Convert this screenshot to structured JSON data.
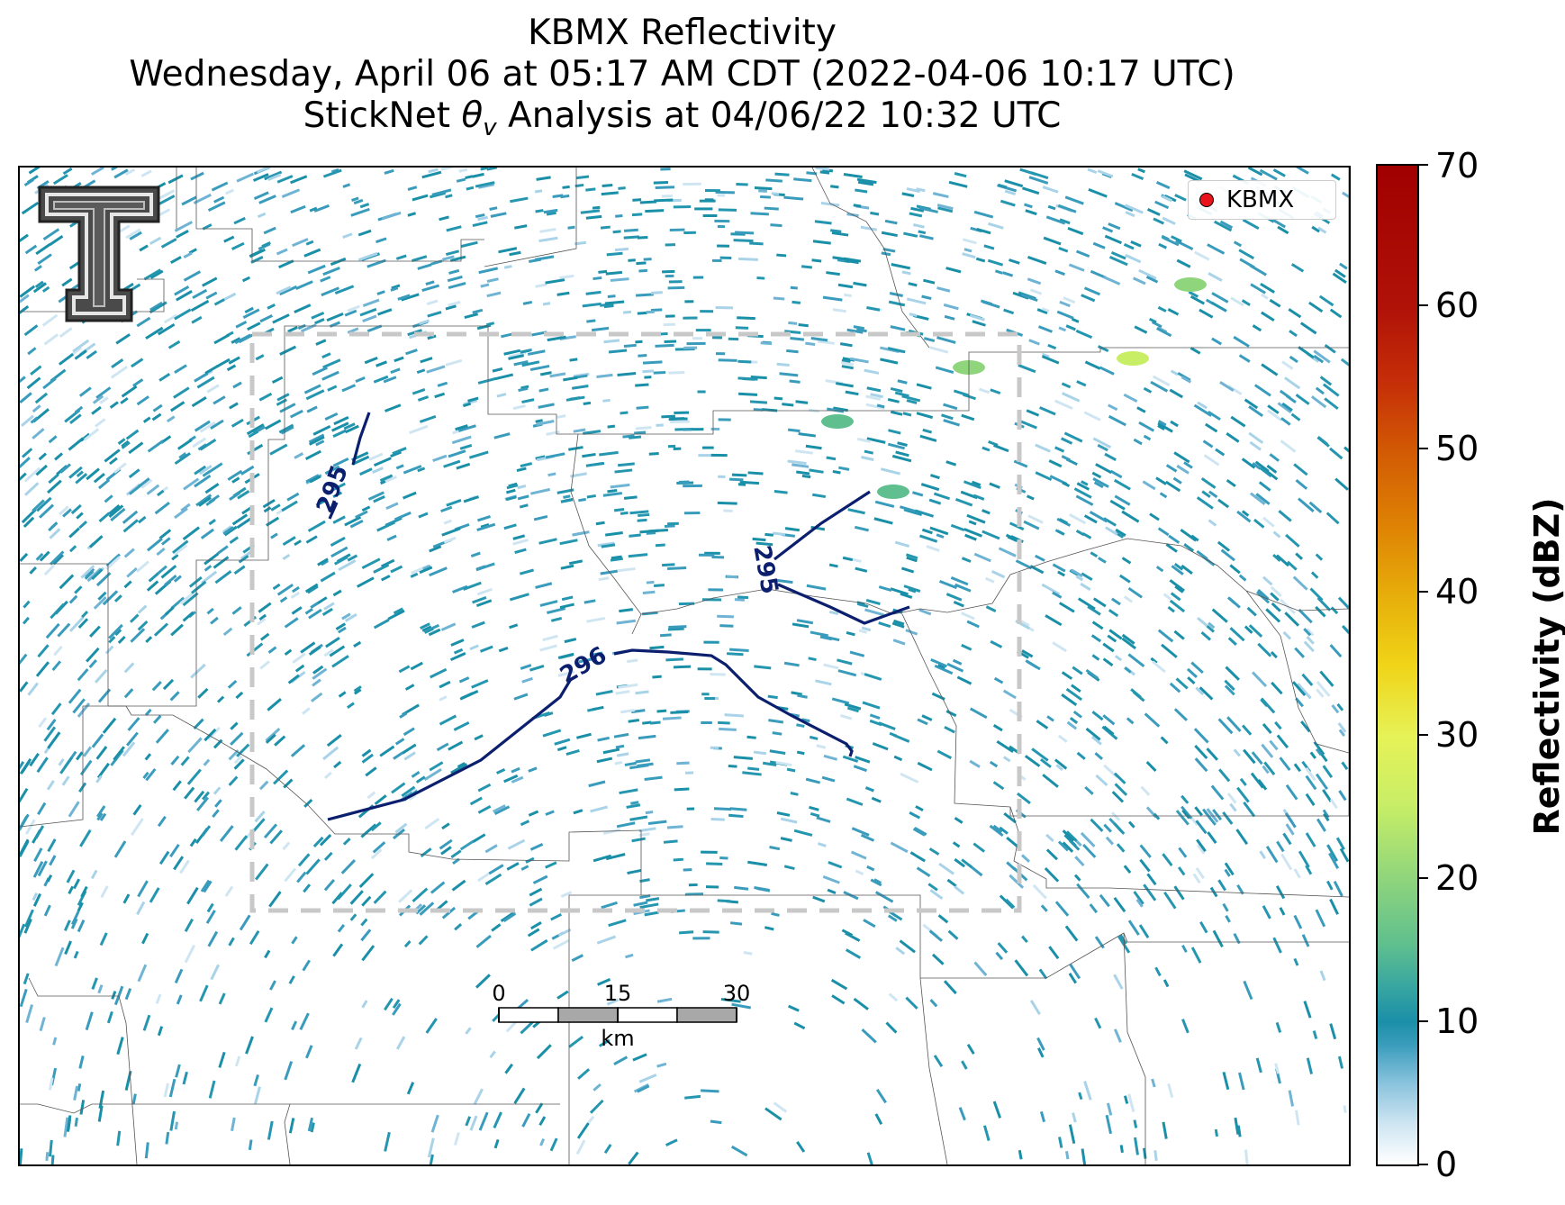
{
  "title": {
    "line1": "KBMX Reflectivity",
    "line2": "Wednesday, April 06 at 05:17 AM CDT (2022-04-06 10:17 UTC)",
    "line3_prefix": "StickNet ",
    "line3_symbol": "θ",
    "line3_subscript": "v",
    "line3_suffix": " Analysis at 04/06/22 10:32 UTC"
  },
  "legend": {
    "marker_label": "KBMX",
    "marker_color": "#e8141c"
  },
  "contours": [
    {
      "label": "295"
    },
    {
      "label": "295"
    },
    {
      "label": "296"
    }
  ],
  "scale_bar": {
    "ticks": [
      "0",
      "15",
      "30"
    ],
    "unit": "km"
  },
  "colorbar": {
    "label": "Reflectivity (dBZ)",
    "ticks": [
      "0",
      "10",
      "20",
      "30",
      "40",
      "50",
      "60",
      "70"
    ],
    "range": [
      0,
      70
    ]
  },
  "colors": {
    "contour": "#0b1f6e",
    "domain_box": "#c8c8c8",
    "echo_primary": "#1a8fa8",
    "echo_light": "#8cc4de"
  },
  "logo": {
    "icon": "texas-tech-double-t-icon"
  }
}
